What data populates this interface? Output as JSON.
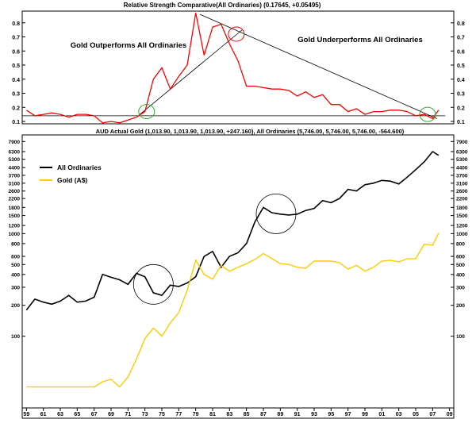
{
  "chart_data": [
    {
      "type": "line",
      "panel": "top",
      "title": "Relative Strength Comparative(All Ordinaries) (0.17645, +0.05495)",
      "ylim": [
        0.1,
        0.9
      ],
      "yticks": [
        0.1,
        0.2,
        0.3,
        0.4,
        0.5,
        0.6,
        0.7,
        0.8
      ],
      "ytick_labels": [
        "0.1",
        "0.2",
        "0.3",
        "0.4",
        "0.5",
        "0.6",
        "0.7",
        "0.8"
      ],
      "series": [
        {
          "name": "Relative Strength",
          "color": "#ff0000",
          "x": [
            1959,
            1960,
            1961,
            1962,
            1963,
            1964,
            1965,
            1966,
            1967,
            1968,
            1969,
            1970,
            1971,
            1972,
            1973,
            1974,
            1975,
            1976,
            1977,
            1978,
            1979,
            1980,
            1981,
            1982,
            1983,
            1984,
            1985,
            1986,
            1987,
            1988,
            1989,
            1990,
            1991,
            1992,
            1993,
            1994,
            1995,
            1996,
            1997,
            1998,
            1999,
            2000,
            2001,
            2002,
            2003,
            2004,
            2005,
            2006,
            2007,
            2007.7
          ],
          "values": [
            0.18,
            0.14,
            0.15,
            0.16,
            0.15,
            0.13,
            0.15,
            0.15,
            0.14,
            0.09,
            0.1,
            0.09,
            0.11,
            0.13,
            0.17,
            0.4,
            0.48,
            0.33,
            0.42,
            0.5,
            0.87,
            0.57,
            0.77,
            0.79,
            0.65,
            0.53,
            0.35,
            0.35,
            0.34,
            0.33,
            0.33,
            0.32,
            0.28,
            0.31,
            0.27,
            0.29,
            0.22,
            0.22,
            0.17,
            0.19,
            0.15,
            0.17,
            0.17,
            0.18,
            0.18,
            0.17,
            0.14,
            0.15,
            0.12,
            0.18
          ]
        }
      ],
      "annotations": [
        {
          "text": "Gold Outperforms All Ordinaries",
          "color": "#000000"
        },
        {
          "text": "Gold Underperforms All Ordinaries",
          "color": "#000000"
        }
      ],
      "trendlines": [
        {
          "name": "up-trendline",
          "from": [
            1972,
            0.13
          ],
          "to": [
            1984.5,
            0.75
          ]
        },
        {
          "name": "down-trendline",
          "from": [
            1979.5,
            0.86
          ],
          "to": [
            2007.5,
            0.12
          ]
        },
        {
          "name": "horizontal-support",
          "from": [
            1958.5,
            0.14
          ],
          "to": [
            2008.5,
            0.14
          ]
        }
      ],
      "circles": [
        {
          "name": "circle-1973",
          "at": [
            1973.2,
            0.17
          ],
          "color": "#33aa33"
        },
        {
          "name": "circle-1983",
          "at": [
            1983.8,
            0.72
          ],
          "color": "#ff0000"
        },
        {
          "name": "circle-2006",
          "at": [
            2006.4,
            0.15
          ],
          "color": "#33aa33"
        }
      ]
    },
    {
      "type": "line",
      "panel": "bottom",
      "title": "AUD Actual Gold (1,013.90, 1,013.90, 1,013.90, +247.160), All Ordinaries (5,746.00, 5,746.00, 5,746.00, -564.600)",
      "yscale": "log",
      "ylim": [
        20,
        9000
      ],
      "yticks": [
        7900,
        6300,
        5300,
        4400,
        3700,
        3100,
        2600,
        2200,
        1800,
        1500,
        1200,
        1000,
        800,
        600,
        500,
        400,
        300,
        200,
        100
      ],
      "ytick_labels": [
        "7900",
        "6300",
        "5300",
        "4400",
        "3700",
        "3100",
        "2600",
        "2200",
        "1800",
        "1500",
        "1200",
        "1000",
        "800",
        "600",
        "500",
        "400",
        "300",
        "200",
        "100"
      ],
      "xlabel": "",
      "x_tick_values": [
        1959,
        1961,
        1963,
        1965,
        1967,
        1969,
        1971,
        1973,
        1975,
        1977,
        1979,
        1981,
        1983,
        1985,
        1987,
        1989,
        1991,
        1993,
        1995,
        1997,
        1999,
        2001,
        2003,
        2005,
        2007,
        2009
      ],
      "x_tick_labels": [
        "59",
        "61",
        "63",
        "65",
        "67",
        "69",
        "71",
        "73",
        "75",
        "77",
        "79",
        "81",
        "83",
        "85",
        "87",
        "89",
        "91",
        "93",
        "95",
        "97",
        "99",
        "01",
        "03",
        "05",
        "07",
        "09"
      ],
      "legend": [
        "All Ordinaries",
        "Gold (A$)"
      ],
      "series": [
        {
          "name": "All Ordinaries",
          "color": "#000000",
          "x": [
            1959,
            1960,
            1961,
            1962,
            1963,
            1964,
            1965,
            1966,
            1967,
            1968,
            1969,
            1970,
            1971,
            1972,
            1973,
            1974,
            1975,
            1976,
            1977,
            1978,
            1979,
            1980,
            1981,
            1982,
            1983,
            1984,
            1985,
            1986,
            1987,
            1988,
            1989,
            1990,
            1991,
            1992,
            1993,
            1994,
            1995,
            1996,
            1997,
            1998,
            1999,
            2000,
            2001,
            2002,
            2003,
            2004,
            2005,
            2006,
            2007,
            2007.7
          ],
          "values": [
            180,
            230,
            215,
            205,
            220,
            250,
            215,
            220,
            240,
            400,
            375,
            355,
            320,
            410,
            380,
            265,
            250,
            315,
            305,
            330,
            380,
            600,
            670,
            470,
            600,
            650,
            800,
            1300,
            1800,
            1600,
            1550,
            1520,
            1550,
            1680,
            1760,
            2100,
            2000,
            2200,
            2700,
            2600,
            3000,
            3100,
            3300,
            3250,
            3050,
            3550,
            4200,
            5000,
            6300,
            5800
          ]
        },
        {
          "name": "Gold (A$)",
          "color": "#ffcc00",
          "x": [
            1959,
            1960,
            1961,
            1962,
            1963,
            1964,
            1965,
            1966,
            1967,
            1968,
            1969,
            1970,
            1971,
            1972,
            1973,
            1974,
            1975,
            1976,
            1977,
            1978,
            1979,
            1980,
            1981,
            1982,
            1983,
            1984,
            1985,
            1986,
            1987,
            1988,
            1989,
            1990,
            1991,
            1992,
            1993,
            1994,
            1995,
            1996,
            1997,
            1998,
            1999,
            2000,
            2001,
            2002,
            2003,
            2004,
            2005,
            2006,
            2007,
            2007.7
          ],
          "values": [
            32,
            32,
            32,
            32,
            32,
            32,
            32,
            32,
            32,
            36,
            38,
            32,
            40,
            60,
            95,
            120,
            100,
            135,
            170,
            280,
            550,
            400,
            360,
            490,
            430,
            470,
            510,
            560,
            640,
            570,
            510,
            500,
            470,
            460,
            540,
            540,
            540,
            520,
            450,
            490,
            430,
            470,
            540,
            550,
            530,
            570,
            570,
            790,
            770,
            1010
          ]
        }
      ],
      "circles": [
        {
          "name": "circle-1974",
          "at": [
            1974,
            320
          ]
        },
        {
          "name": "circle-1989",
          "at": [
            1988.5,
            1560
          ]
        }
      ]
    }
  ]
}
